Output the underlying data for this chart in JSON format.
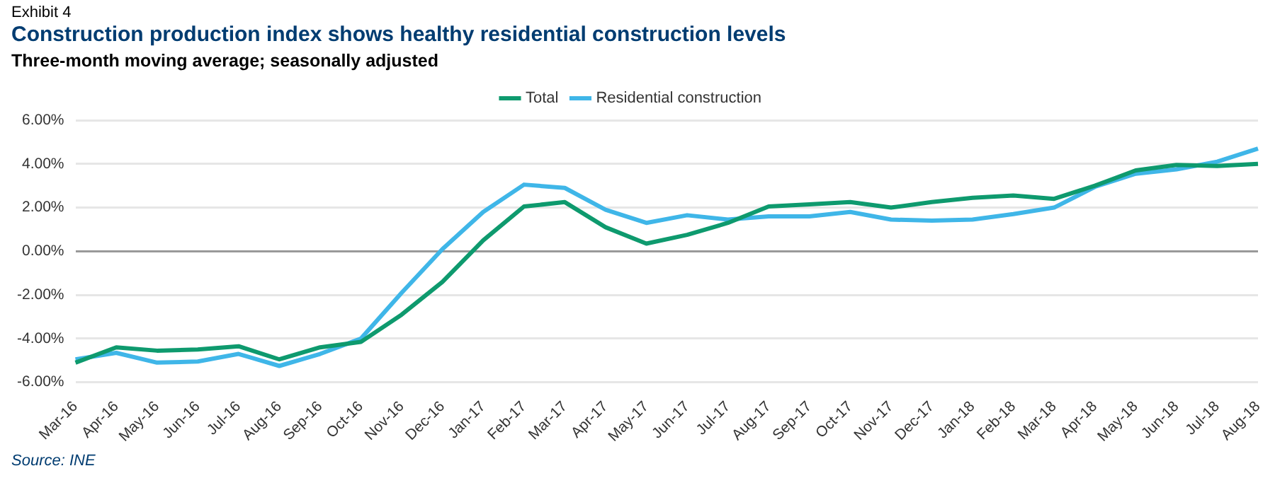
{
  "chart_data": {
    "type": "line",
    "title": "Construction production index shows healthy residential construction levels",
    "subtitle": "Three-month moving average; seasonally adjusted",
    "annotations": [
      "Exhibit 4",
      "Source: INE"
    ],
    "categories": [
      "Mar-16",
      "Apr-16",
      "May-16",
      "Jun-16",
      "Jul-16",
      "Aug-16",
      "Sep-16",
      "Oct-16",
      "Nov-16",
      "Dec-16",
      "Jan-17",
      "Feb-17",
      "Mar-17",
      "Apr-17",
      "May-17",
      "Jun-17",
      "Jul-17",
      "Aug-17",
      "Sep-17",
      "Oct-17",
      "Nov-17",
      "Dec-17",
      "Jan-18",
      "Feb-18",
      "Mar-18",
      "Apr-18",
      "May-18",
      "Jun-18",
      "Jul-18",
      "Aug-18"
    ],
    "series": [
      {
        "name": "Total",
        "color": "#0e9a6e",
        "values": [
          -5.1,
          -4.4,
          -4.55,
          -4.5,
          -4.35,
          -4.95,
          -4.4,
          -4.15,
          -2.9,
          -1.4,
          0.5,
          2.05,
          2.25,
          1.1,
          0.35,
          0.75,
          1.3,
          2.05,
          2.15,
          2.25,
          2.0,
          2.25,
          2.45,
          2.55,
          2.4,
          3.0,
          3.7,
          3.95,
          3.9,
          4.0
        ]
      },
      {
        "name": "Residential construction",
        "color": "#3fb6e8",
        "values": [
          -4.95,
          -4.65,
          -5.1,
          -5.05,
          -4.7,
          -5.25,
          -4.7,
          -4.0,
          -1.9,
          0.1,
          1.8,
          3.05,
          2.9,
          1.9,
          1.3,
          1.65,
          1.45,
          1.6,
          1.6,
          1.8,
          1.45,
          1.4,
          1.45,
          1.7,
          2.0,
          2.95,
          3.55,
          3.75,
          4.1,
          4.7
        ]
      }
    ],
    "ylim": [
      -6,
      6
    ],
    "yticks": [
      {
        "value": -6,
        "label": "-6.00%"
      },
      {
        "value": -4,
        "label": "-4.00%"
      },
      {
        "value": -2,
        "label": "-2.00%"
      },
      {
        "value": 0,
        "label": "0.00%"
      },
      {
        "value": 2,
        "label": "2.00%"
      },
      {
        "value": 4,
        "label": "4.00%"
      },
      {
        "value": 6,
        "label": "6.00%"
      }
    ],
    "grid": "y",
    "legend": "top",
    "marker": "none",
    "line_style": "solid"
  }
}
